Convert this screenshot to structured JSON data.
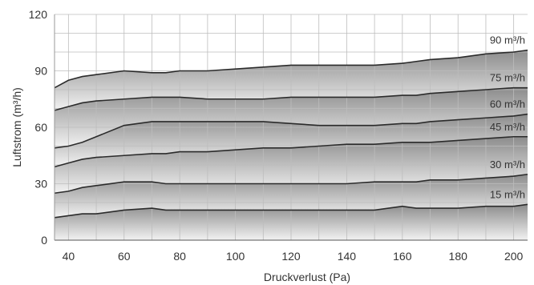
{
  "chart_data": {
    "type": "area",
    "title": "",
    "xlabel": "Druckverlust (Pa)",
    "ylabel": "Luftstrom (m³/h)",
    "xlim": [
      35,
      205
    ],
    "ylim": [
      0,
      120
    ],
    "xticks": [
      40,
      60,
      80,
      100,
      120,
      140,
      160,
      180,
      200
    ],
    "yticks": [
      0,
      30,
      60,
      90,
      120
    ],
    "grid": true,
    "colors": {
      "band_light": "#f2f2f2",
      "band_dark": "#8c8c8c",
      "line": "#2b2b2b",
      "grid": "#bdbdbd"
    },
    "x": [
      35,
      40,
      45,
      50,
      60,
      70,
      75,
      80,
      90,
      100,
      110,
      120,
      130,
      140,
      150,
      160,
      165,
      170,
      180,
      190,
      200,
      205
    ],
    "series": [
      {
        "name": "15 m³/h",
        "values": [
          12,
          13,
          14,
          14,
          16,
          17,
          16,
          16,
          16,
          16,
          16,
          16,
          16,
          16,
          16,
          18,
          17,
          17,
          17,
          18,
          18,
          19
        ]
      },
      {
        "name": "30 m³/h",
        "values": [
          25,
          26,
          28,
          29,
          31,
          31,
          30,
          30,
          30,
          30,
          30,
          30,
          30,
          30,
          31,
          31,
          31,
          32,
          32,
          33,
          34,
          35
        ]
      },
      {
        "name": "45 m³/h",
        "values": [
          39,
          41,
          43,
          44,
          45,
          46,
          46,
          47,
          47,
          48,
          49,
          49,
          50,
          51,
          51,
          52,
          52,
          52,
          53,
          54,
          55,
          55
        ]
      },
      {
        "name": "60 m³/h",
        "values": [
          49,
          50,
          52,
          55,
          61,
          63,
          63,
          63,
          63,
          63,
          63,
          62,
          61,
          61,
          61,
          62,
          62,
          63,
          64,
          65,
          66,
          67
        ]
      },
      {
        "name": "75 m³/h",
        "values": [
          69,
          71,
          73,
          74,
          75,
          76,
          76,
          76,
          75,
          75,
          75,
          76,
          76,
          76,
          76,
          77,
          77,
          78,
          79,
          80,
          81,
          81
        ]
      },
      {
        "name": "90 m³/h",
        "values": [
          81,
          85,
          87,
          88,
          90,
          89,
          89,
          90,
          90,
          91,
          92,
          93,
          93,
          93,
          93,
          94,
          95,
          96,
          97,
          99,
          100,
          101
        ]
      }
    ],
    "series_label_positions": [
      "right",
      "right",
      "right",
      "right",
      "right",
      "right"
    ]
  }
}
